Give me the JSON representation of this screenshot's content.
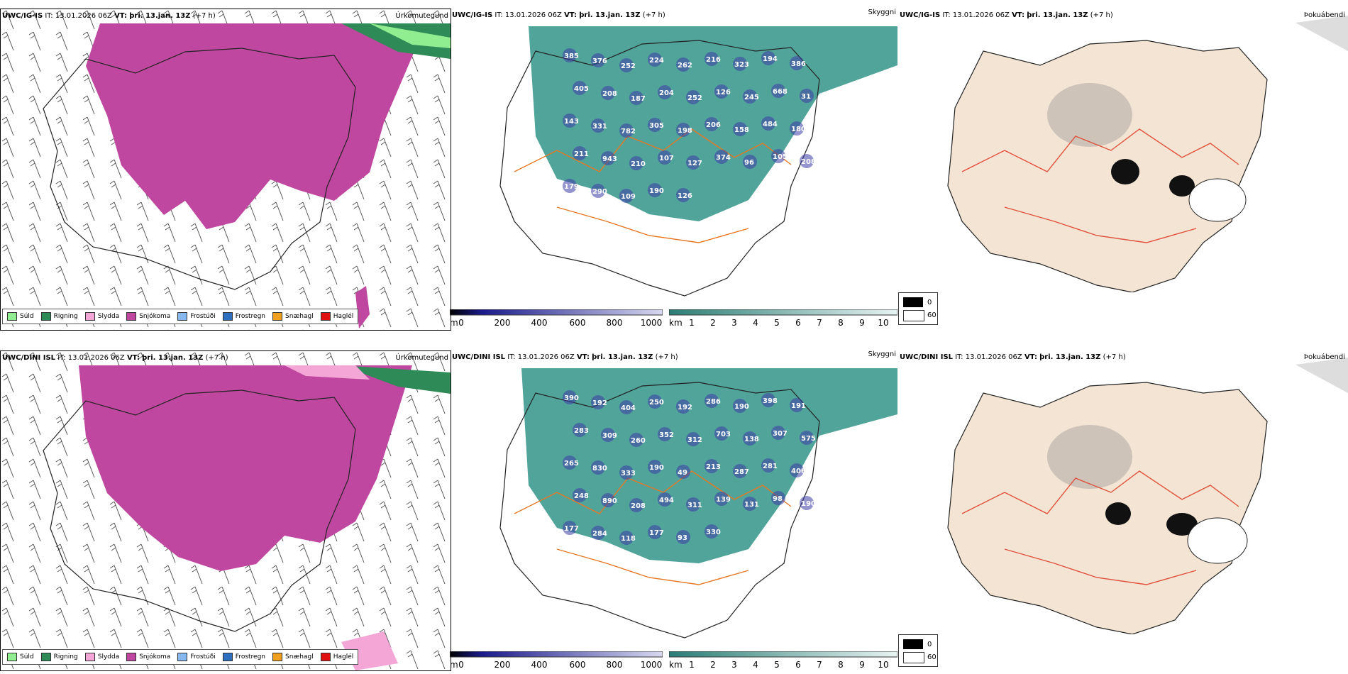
{
  "rows": [
    {
      "precip": {
        "model": "UWC/IG-IS",
        "it_label": "IT:",
        "it_value": "13.01.2026 06Z",
        "vt_label": "VT:",
        "vt_value": "þri. 13.jan. 13Z",
        "lead": "(+7 h)",
        "title": "Úrkomutegund"
      },
      "cloudbase": {
        "model": "UWC/IG-IS",
        "it_label": "IT:",
        "it_value": "13.01.2026 06Z",
        "vt_label": "VT:",
        "vt_value": "þri. 13.jan. 13Z",
        "lead": "(+7 h)",
        "title": "Skyggni",
        "labels": [
          "385",
          "376",
          "252",
          "224",
          "262",
          "216",
          "323",
          "194",
          "386",
          "405",
          "208",
          "187",
          "204",
          "252",
          "126",
          "245",
          "668",
          "31",
          "143",
          "331",
          "782",
          "305",
          "198",
          "206",
          "158",
          "484",
          "180",
          "211",
          "943",
          "210",
          "107",
          "127",
          "374",
          "96",
          "105",
          "208",
          "179",
          "290",
          "109",
          "190",
          "126"
        ]
      },
      "fog": {
        "model": "UWC/IG-IS",
        "it_label": "IT:",
        "it_value": "13.01.2026 06Z",
        "vt_label": "VT:",
        "vt_value": "þri. 13.jan. 13Z",
        "lead": "(+7 h)",
        "title": "Þokuábendi"
      }
    },
    {
      "precip": {
        "model": "UWC/DINI ISL",
        "it_label": "IT:",
        "it_value": "13.01.2026 06Z",
        "vt_label": "VT:",
        "vt_value": "þri. 13.jan. 13Z",
        "lead": "(+7 h)",
        "title": "Úrkomutegund"
      },
      "cloudbase": {
        "model": "UWC/DINI ISL",
        "it_label": "IT:",
        "it_value": "13.01.2026 06Z",
        "vt_label": "VT:",
        "vt_value": "þri. 13.jan. 13Z",
        "lead": "(+7 h)",
        "title": "Skyggni",
        "labels": [
          "390",
          "192",
          "404",
          "250",
          "192",
          "286",
          "190",
          "398",
          "191",
          "283",
          "309",
          "260",
          "352",
          "312",
          "703",
          "138",
          "307",
          "575",
          "265",
          "830",
          "333",
          "190",
          "49",
          "213",
          "287",
          "281",
          "406",
          "248",
          "890",
          "208",
          "494",
          "311",
          "139",
          "131",
          "98",
          "190",
          "177",
          "284",
          "118",
          "177",
          "93",
          "330"
        ]
      },
      "fog": {
        "model": "UWC/DINI ISL",
        "it_label": "IT:",
        "it_value": "13.01.2026 06Z",
        "vt_label": "VT:",
        "vt_value": "þri. 13.jan. 13Z",
        "lead": "(+7 h)",
        "title": "Þokuábendi"
      }
    }
  ],
  "precip_legend": [
    {
      "label": "Súld",
      "color": "#90ee90"
    },
    {
      "label": "Rigning",
      "color": "#2e8b57"
    },
    {
      "label": "Slydda",
      "color": "#f4a6d7"
    },
    {
      "label": "Snjókoma",
      "color": "#c0479f"
    },
    {
      "label": "Frostúði",
      "color": "#87b9f0"
    },
    {
      "label": "Frostregn",
      "color": "#2f6fbf"
    },
    {
      "label": "Snæhagl",
      "color": "#f0a020"
    },
    {
      "label": "Haglél",
      "color": "#e01010"
    }
  ],
  "height_bar": {
    "unit": "m",
    "ticks": [
      "0",
      "200",
      "400",
      "600",
      "800",
      "1000"
    ]
  },
  "vis_bar": {
    "unit": "km",
    "ticks": [
      "1",
      "2",
      "3",
      "4",
      "5",
      "6",
      "7",
      "8",
      "9",
      "10"
    ]
  },
  "fog_legend": {
    "black": "0",
    "white": "60"
  },
  "colors": {
    "snow": "#c0479f",
    "rain": "#2e8b57",
    "drizzle": "#90ee90",
    "sleet": "#f4a6d7",
    "teal": "#3d9a8f",
    "land": "#f3e4d4",
    "road": "#e87722",
    "blue_label": "#3d3da8"
  }
}
